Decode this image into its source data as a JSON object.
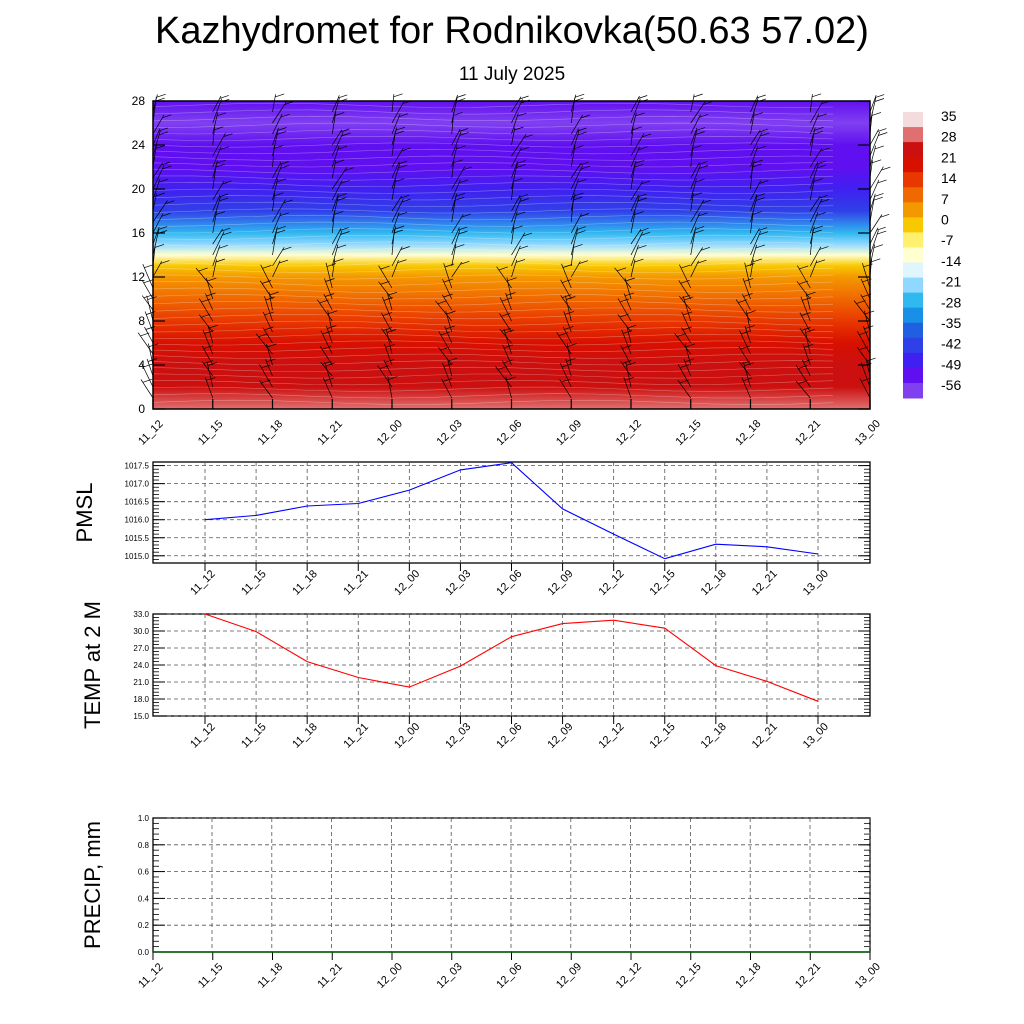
{
  "header": {
    "title": "Kazhydromet for Rodnikovka(50.63 57.02)",
    "subtitle": "11 July 2025"
  },
  "chart_data": [
    {
      "type": "heatmap",
      "title": "",
      "xlabel": "",
      "ylabel": "",
      "categories": [
        "11_12",
        "11_15",
        "11_18",
        "11_21",
        "12_00",
        "12_03",
        "12_06",
        "12_09",
        "12_12",
        "12_15",
        "12_18",
        "12_21",
        "13_00"
      ],
      "ylim": [
        0,
        28
      ],
      "yticks": [
        0,
        4,
        8,
        12,
        16,
        20,
        24,
        28
      ],
      "y_levels": [
        0,
        2,
        4,
        6,
        8,
        10,
        12,
        13,
        14,
        15,
        16,
        18,
        20,
        22,
        24,
        26,
        28
      ],
      "temperature_by_level": [
        28,
        25,
        22,
        19,
        15,
        10,
        3,
        -3,
        -12,
        -20,
        -28,
        -40,
        -48,
        -51,
        -54,
        -56,
        -54
      ],
      "colorbar_labels": [
        "35",
        "28",
        "21",
        "14",
        "7",
        "0",
        "-7",
        "-14",
        "-21",
        "-28",
        "-35",
        "-42",
        "-49",
        "-56"
      ],
      "colorbar_colors": [
        "#f5dcdc",
        "#e07070",
        "#cc1010",
        "#d81000",
        "#e83800",
        "#f06800",
        "#f49800",
        "#f8c800",
        "#fff070",
        "#ffffd0",
        "#dff6ff",
        "#90d8ff",
        "#30b8f0",
        "#1890e8",
        "#2060e0",
        "#3040e8",
        "#4020f0",
        "#6010f0",
        "#8040f0"
      ],
      "wind_barbs": true,
      "grid": false
    },
    {
      "type": "line",
      "ylabel": "PMSL",
      "categories": [
        "11_12",
        "11_15",
        "11_18",
        "11_21",
        "12_00",
        "12_03",
        "12_06",
        "12_09",
        "12_12",
        "12_15",
        "12_18",
        "12_21",
        "13_00"
      ],
      "series": [
        {
          "values": [
            1016.0,
            1016.12,
            1016.38,
            1016.45,
            1016.82,
            1017.38,
            1017.58,
            1016.3,
            1015.6,
            1014.92,
            1015.32,
            1015.25,
            1015.05
          ],
          "color": "#0000ff"
        }
      ],
      "ylim": [
        1014.8,
        1017.6
      ],
      "ytick_labels": [
        "1015.0",
        "1015.5",
        "1016.0",
        "1016.5",
        "1017.0",
        "1017.5"
      ],
      "yticks": [
        1015.0,
        1015.5,
        1016.0,
        1016.5,
        1017.0,
        1017.5
      ],
      "grid": true
    },
    {
      "type": "line",
      "ylabel": "TEMP at 2 M",
      "categories": [
        "11_12",
        "11_15",
        "11_18",
        "11_21",
        "12_00",
        "12_03",
        "12_06",
        "12_09",
        "12_12",
        "12_15",
        "12_18",
        "12_21",
        "13_00"
      ],
      "series": [
        {
          "values": [
            33.0,
            29.9,
            24.6,
            21.8,
            20.1,
            23.8,
            29.0,
            31.3,
            31.9,
            30.5,
            23.9,
            21.1,
            17.6
          ],
          "color": "#ff0000"
        }
      ],
      "ylim": [
        15.0,
        33.0
      ],
      "ytick_labels": [
        "15.0",
        "18.0",
        "21.0",
        "24.0",
        "27.0",
        "30.0",
        "33.0"
      ],
      "yticks": [
        15,
        18,
        21,
        24,
        27,
        30,
        33
      ],
      "grid": true
    },
    {
      "type": "line",
      "ylabel": "PRECIP, mm",
      "categories": [
        "11_12",
        "11_15",
        "11_18",
        "11_21",
        "12_00",
        "12_03",
        "12_06",
        "12_09",
        "12_12",
        "12_15",
        "12_18",
        "12_21",
        "13_00"
      ],
      "series": [
        {
          "values": [
            0,
            0,
            0,
            0,
            0,
            0,
            0,
            0,
            0,
            0,
            0,
            0,
            0
          ],
          "color": "#006400"
        }
      ],
      "ylim": [
        0.0,
        1.0
      ],
      "ytick_labels": [
        "0.0",
        "0.2",
        "0.4",
        "0.6",
        "0.8",
        "1.0"
      ],
      "yticks": [
        0,
        0.2,
        0.4,
        0.6,
        0.8,
        1.0
      ],
      "grid": true
    }
  ]
}
